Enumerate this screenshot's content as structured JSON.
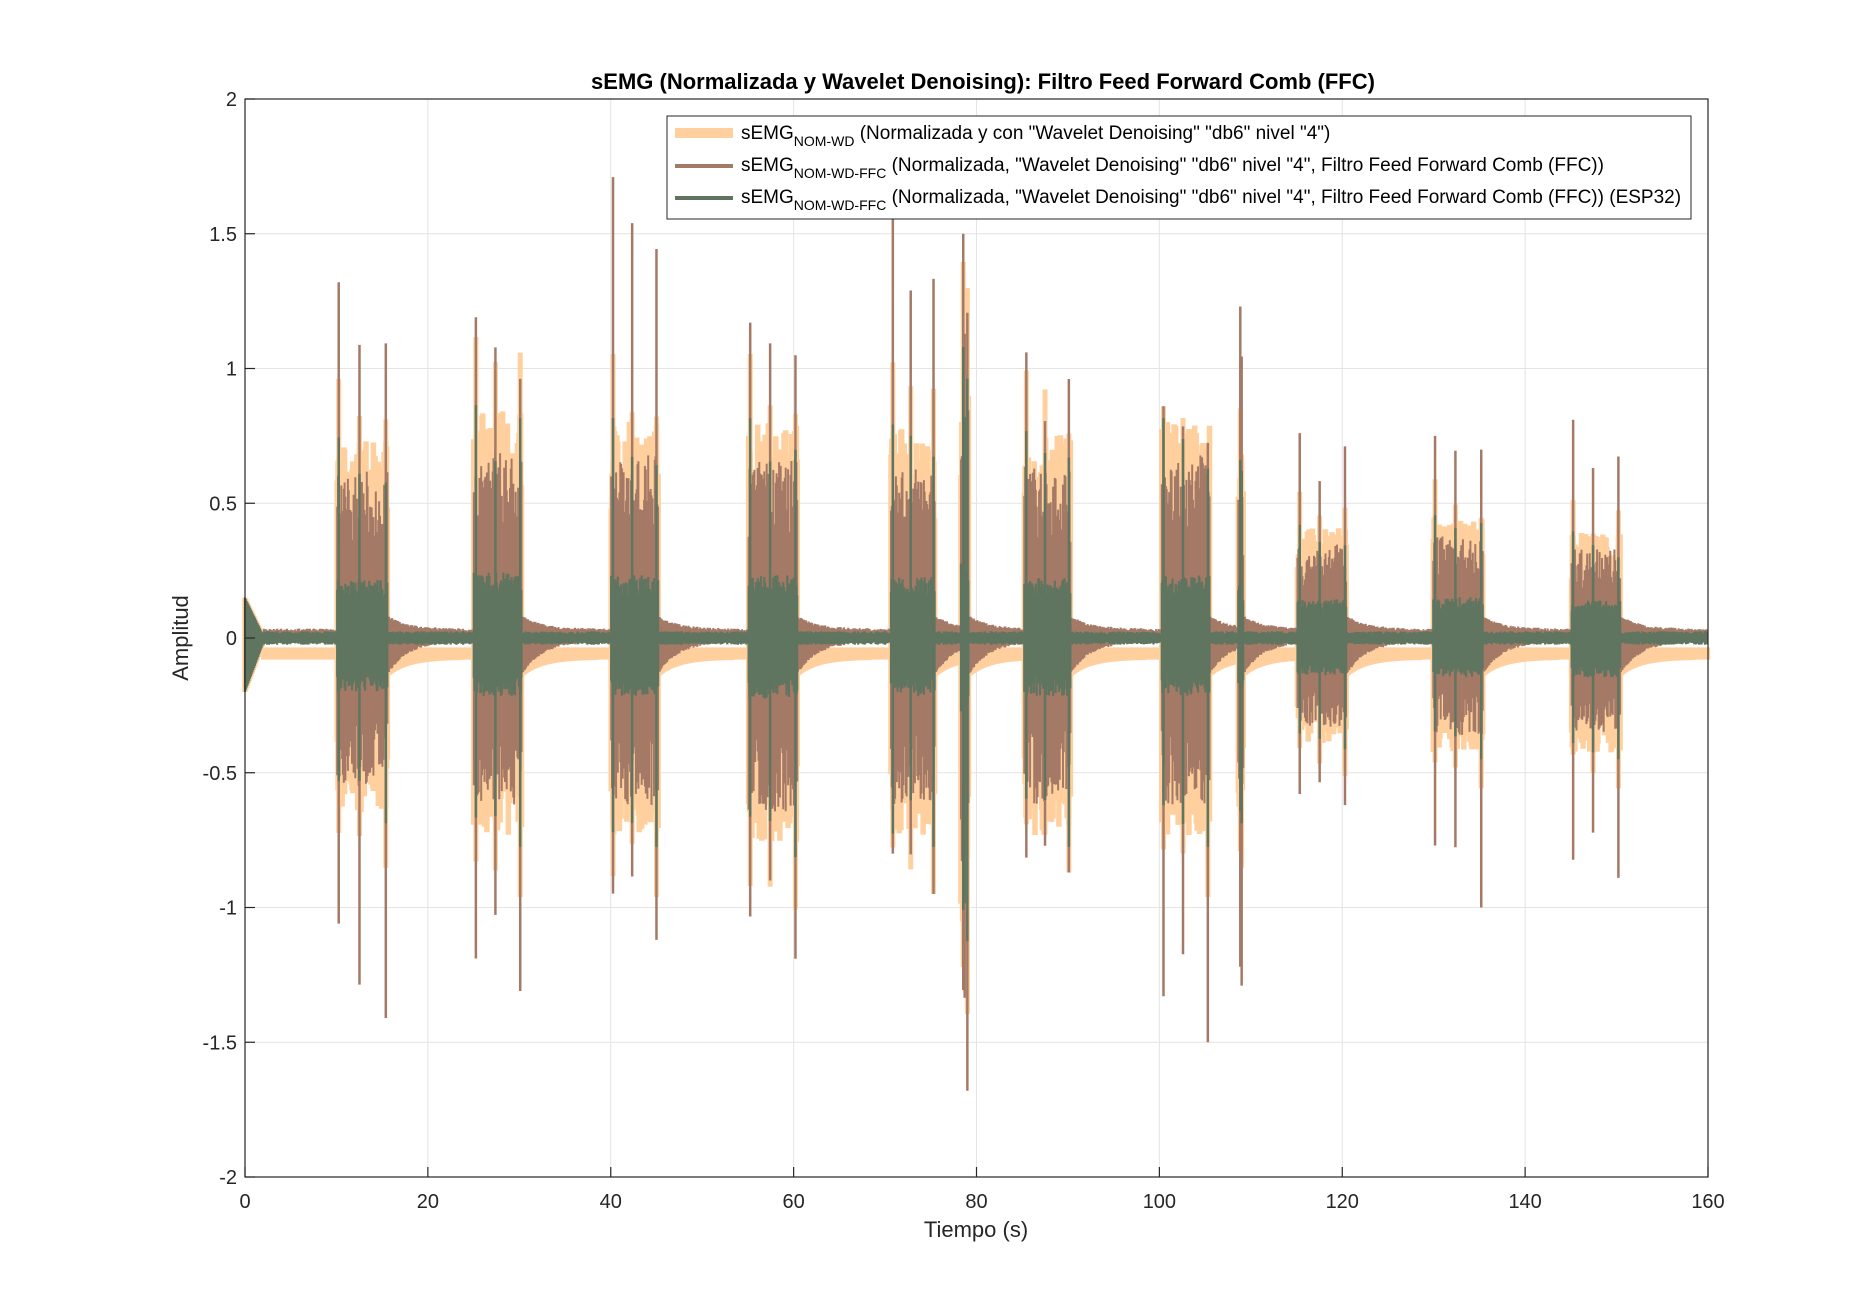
{
  "chart_data": {
    "type": "line",
    "title": "sEMG (Normalizada y Wavelet Denoising): Filtro Feed Forward Comb (FFC)",
    "xlabel": "Tiempo (s)",
    "ylabel": "Amplitud",
    "xlim": [
      0,
      160
    ],
    "ylim": [
      -2,
      2
    ],
    "xticks": [
      0,
      20,
      40,
      60,
      80,
      100,
      120,
      140,
      160
    ],
    "yticks": [
      -2,
      -1.5,
      -1,
      -0.5,
      0,
      0.5,
      1,
      1.5,
      2
    ],
    "xtick_labels": [
      "0",
      "20",
      "40",
      "60",
      "80",
      "100",
      "120",
      "140",
      "160"
    ],
    "ytick_labels": [
      "-2",
      "-1.5",
      "-1",
      "-0.5",
      "0",
      "0.5",
      "1",
      "1.5",
      "2"
    ],
    "grid": true,
    "legend_position": "top-right",
    "bursts": [
      {
        "start": 10.0,
        "end": 15.6,
        "env_top": 0.62,
        "env_bottom": -0.55,
        "peak_max": 1.32,
        "peak_min": -1.41
      },
      {
        "start": 25.0,
        "end": 30.3,
        "env_top": 0.72,
        "env_bottom": -0.62,
        "peak_max": 1.19,
        "peak_min": -1.31
      },
      {
        "start": 40.0,
        "end": 45.2,
        "env_top": 0.68,
        "env_bottom": -0.62,
        "peak_max": 1.71,
        "peak_min": -1.12
      },
      {
        "start": 55.0,
        "end": 60.4,
        "env_top": 0.68,
        "env_bottom": -0.65,
        "peak_max": 1.17,
        "peak_min": -1.19
      },
      {
        "start": 70.6,
        "end": 75.5,
        "env_top": 0.66,
        "env_bottom": -0.62,
        "peak_max": 1.63,
        "peak_min": -0.95
      },
      {
        "start": 78.3,
        "end": 79.2,
        "env_top": 0.9,
        "env_bottom": -0.9,
        "peak_max": 1.5,
        "peak_min": -1.68
      },
      {
        "start": 85.2,
        "end": 90.3,
        "env_top": 0.64,
        "env_bottom": -0.62,
        "peak_max": 1.06,
        "peak_min": -0.87
      },
      {
        "start": 100.2,
        "end": 105.5,
        "env_top": 0.68,
        "env_bottom": -0.62,
        "peak_max": 0.86,
        "peak_min": -1.5
      },
      {
        "start": 108.6,
        "end": 109.2,
        "env_top": 0.55,
        "env_bottom": -0.55,
        "peak_max": 1.23,
        "peak_min": -1.29
      },
      {
        "start": 115.1,
        "end": 120.5,
        "env_top": 0.35,
        "env_bottom": -0.33,
        "peak_max": 0.76,
        "peak_min": -0.62
      },
      {
        "start": 129.9,
        "end": 135.4,
        "env_top": 0.38,
        "env_bottom": -0.36,
        "peak_max": 0.75,
        "peak_min": -1.0
      },
      {
        "start": 145.0,
        "end": 150.4,
        "env_top": 0.33,
        "env_bottom": -0.36,
        "peak_max": 0.81,
        "peak_min": -0.89
      }
    ],
    "series": [
      {
        "name": "sEMG",
        "name_sub": "NOM-WD",
        "name_rest": " (Normalizada y con \"Wavelet Denoising\" \"db6\" nivel \"4\")",
        "color": "#FFD09E",
        "baseline": -0.05
      },
      {
        "name": "sEMG",
        "name_sub": "NOM-WD-FFC",
        "name_rest": " (Normalizada, \"Wavelet Denoising\" \"db6\" nivel \"4\", Filtro Feed Forward Comb (FFC))",
        "color": "#A47A66",
        "baseline": 0.01
      },
      {
        "name": "sEMG",
        "name_sub": "NOM-WD-FFC",
        "name_rest": " (Normalizada, \"Wavelet Denoising\" \"db6\" nivel \"4\", Filtro Feed Forward Comb (FFC)) (ESP32)",
        "color": "#5F7560",
        "baseline": 0.0
      }
    ]
  }
}
